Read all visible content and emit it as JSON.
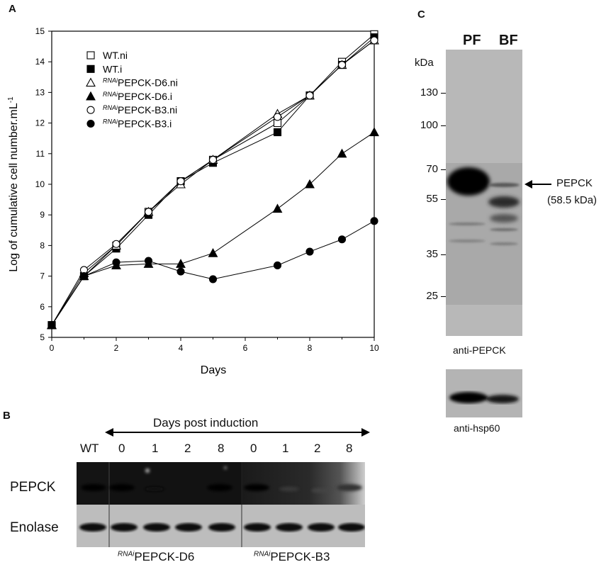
{
  "panels": {
    "a": {
      "letter": "A"
    },
    "b": {
      "letter": "B"
    },
    "c": {
      "letter": "C"
    }
  },
  "chart_data": {
    "type": "line",
    "xlabel": "Days",
    "ylabel": "Log of cumulative cell number.mL",
    "ylabel_sup": "-1",
    "xlim": [
      0,
      10
    ],
    "ylim": [
      5,
      15
    ],
    "xticks": [
      "0",
      "2",
      "4",
      "6",
      "8",
      "10"
    ],
    "yticks": [
      "5",
      "6",
      "7",
      "8",
      "9",
      "10",
      "11",
      "12",
      "13",
      "14",
      "15"
    ],
    "grid": false,
    "legend_position": "top-left",
    "series": [
      {
        "name": "WT.ni",
        "prefix": "",
        "marker": "square",
        "filled": false,
        "x": [
          0,
          1,
          2,
          3,
          4,
          5,
          7,
          8,
          9,
          10
        ],
        "y": [
          5.4,
          7.0,
          8.0,
          9.1,
          10.1,
          10.8,
          12.0,
          12.9,
          14.0,
          14.9
        ]
      },
      {
        "name": "WT.i",
        "prefix": "",
        "marker": "square",
        "filled": true,
        "x": [
          0,
          1,
          2,
          3,
          4,
          5,
          7,
          8,
          9,
          10
        ],
        "y": [
          5.4,
          7.0,
          7.9,
          9.0,
          10.1,
          10.7,
          11.7,
          12.9,
          13.9,
          14.8
        ]
      },
      {
        "name": "PEPCK-D6.ni",
        "prefix": "RNAi",
        "marker": "triangle",
        "filled": false,
        "x": [
          0,
          1,
          2,
          3,
          4,
          5,
          7,
          8,
          9,
          10
        ],
        "y": [
          5.4,
          7.1,
          8.0,
          9.1,
          10.0,
          10.8,
          12.3,
          12.9,
          13.9,
          14.7
        ]
      },
      {
        "name": "PEPCK-D6.i",
        "prefix": "RNAi",
        "marker": "triangle",
        "filled": true,
        "x": [
          0,
          1,
          2,
          3,
          4,
          5,
          7,
          8,
          9,
          10
        ],
        "y": [
          5.4,
          7.0,
          7.35,
          7.4,
          7.4,
          7.75,
          9.2,
          10.0,
          11.0,
          11.7
        ]
      },
      {
        "name": "PEPCK-B3.ni",
        "prefix": "RNAi",
        "marker": "circle",
        "filled": false,
        "x": [
          0,
          1,
          2,
          3,
          4,
          5,
          7,
          8,
          9,
          10
        ],
        "y": [
          5.4,
          7.2,
          8.05,
          9.1,
          10.1,
          10.8,
          12.2,
          12.9,
          13.9,
          14.7
        ]
      },
      {
        "name": "PEPCK-B3.i",
        "prefix": "RNAi",
        "marker": "circle",
        "filled": true,
        "x": [
          0,
          1,
          2,
          3,
          4,
          5,
          7,
          8,
          9,
          10
        ],
        "y": [
          5.4,
          7.0,
          7.45,
          7.5,
          7.15,
          6.9,
          7.35,
          7.8,
          8.2,
          8.8
        ]
      }
    ]
  },
  "panel_b": {
    "header": "Days post induction",
    "lanes": [
      "WT",
      "0",
      "1",
      "2",
      "8",
      "0",
      "1",
      "2",
      "8"
    ],
    "rows": [
      "PEPCK",
      "Enolase"
    ],
    "group_prefix": "RNAi",
    "groups": [
      "PEPCK-D6",
      "PEPCK-B3"
    ]
  },
  "panel_c": {
    "lanes": [
      "PF",
      "BF"
    ],
    "unit": "kDa",
    "markers": [
      "130",
      "100",
      "70",
      "55",
      "35",
      "25"
    ],
    "marker_values": [
      130,
      100,
      70,
      55,
      35,
      25
    ],
    "band_label": "PEPCK",
    "band_size": "(58.5 kDa)",
    "antibody_main": "anti-PEPCK",
    "antibody_loading": "anti-hsp60"
  }
}
